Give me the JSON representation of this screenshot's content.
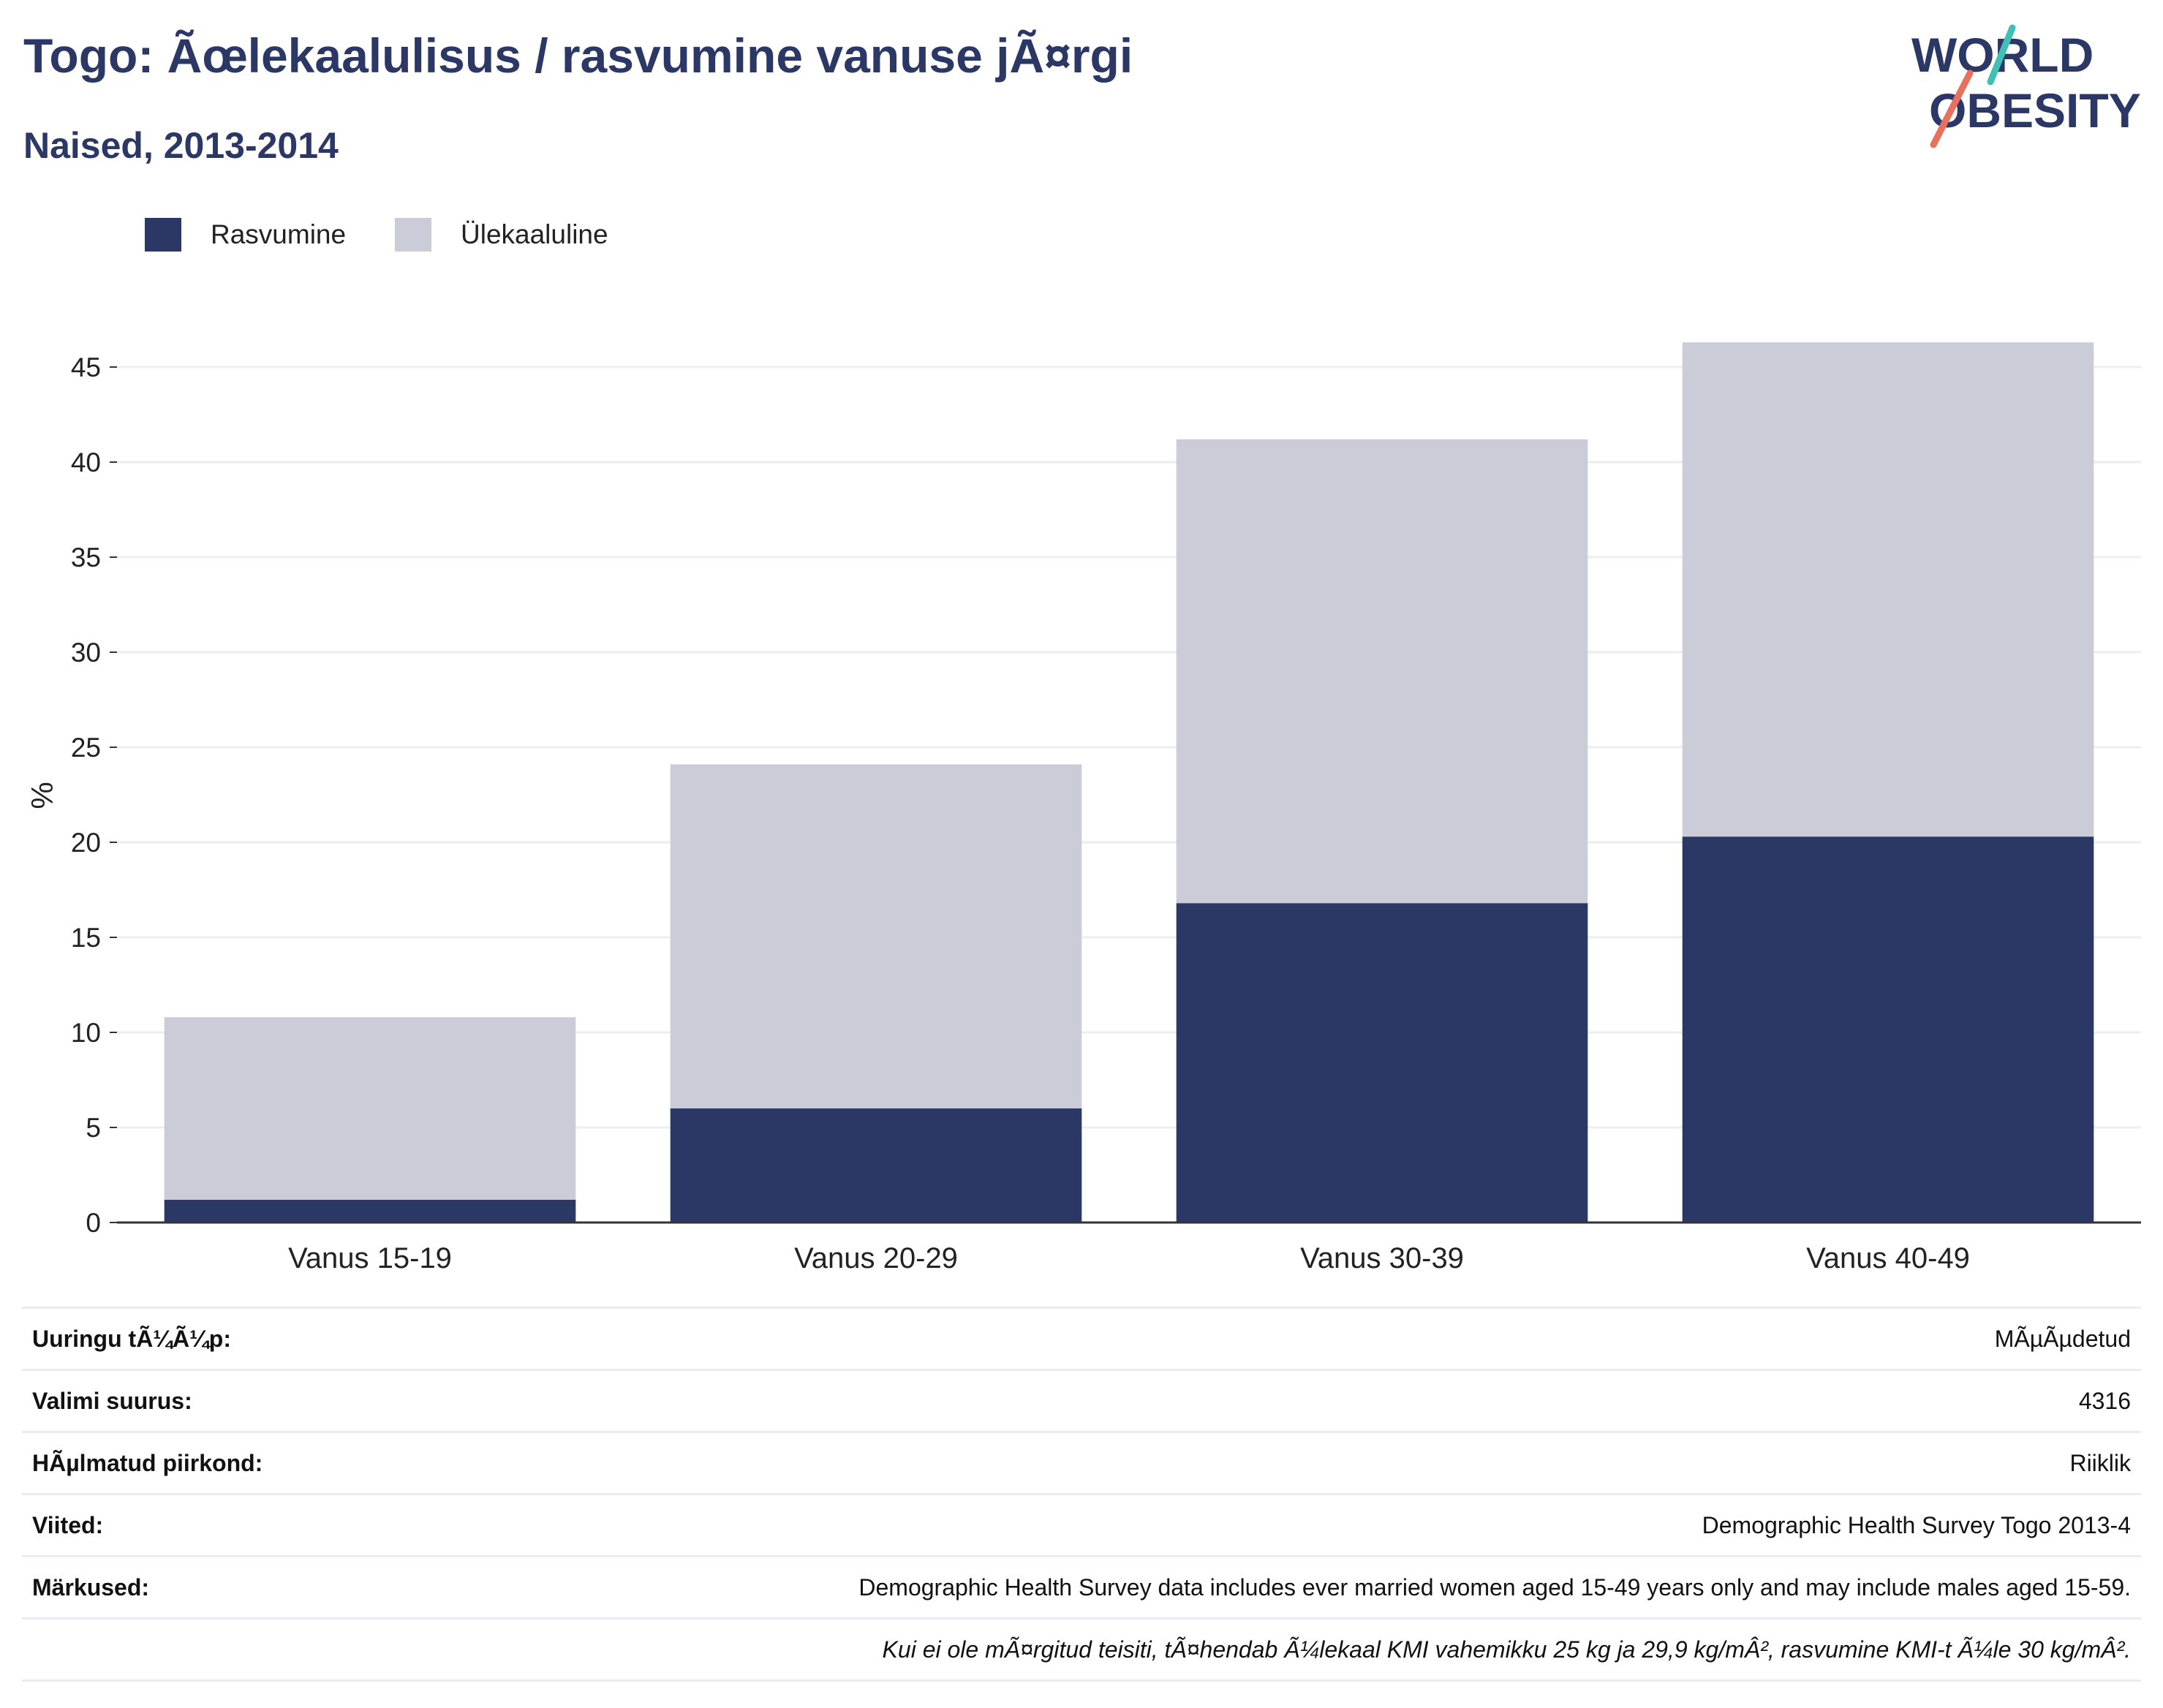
{
  "header": {
    "title": "Togo: Ãœlekaalulisus / rasvumine vanuse jÃ¤rgi",
    "subtitle": "Naised, 2013-2014",
    "logo_line1": "WORLD",
    "logo_line2": "OBESITY"
  },
  "colors": {
    "obesity": "#2b3765",
    "overweight": "#cacdd8",
    "grid": "#eceef3",
    "axis": "#333333",
    "logo_text": "#2b3765",
    "logo_accent_teal": "#3fbfb5",
    "logo_accent_coral": "#e8705e"
  },
  "chart_data": {
    "type": "bar",
    "stacked": true,
    "categories": [
      "Vanus 15-19",
      "Vanus 20-29",
      "Vanus 30-39",
      "Vanus 40-49"
    ],
    "series": [
      {
        "name": "Rasvumine",
        "values": [
          1.2,
          6.0,
          16.8,
          20.3
        ]
      },
      {
        "name": "Ülekaaluline",
        "values": [
          9.6,
          18.1,
          24.4,
          26.0
        ]
      }
    ],
    "ylabel": "%",
    "xlabel": "",
    "ylim": [
      0,
      48
    ],
    "yticks": [
      0,
      5,
      10,
      15,
      20,
      25,
      30,
      35,
      40,
      45
    ],
    "grid": true,
    "legend_position": "top-left"
  },
  "info": {
    "rows": [
      {
        "label": "Uuringu tÃ¼Ã¼p:",
        "value": "MÃµÃµdetud"
      },
      {
        "label": "Valimi suurus:",
        "value": "4316"
      },
      {
        "label": "HÃµlmatud piirkond:",
        "value": "Riiklik"
      },
      {
        "label": "Viited:",
        "value": "Demographic Health Survey Togo 2013-4"
      },
      {
        "label": "Märkused:",
        "value": "Demographic Health Survey data includes ever married women aged 15-49 years only and may include males aged 15-59."
      },
      {
        "label": "",
        "value": "Kui ei ole mÃ¤rgitud teisiti, tÃ¤hendab Ã¼lekaal KMI vahemikku 25 kg ja 29,9 kg/mÂ², rasvumine KMI-t Ã¼le 30 kg/mÂ²."
      }
    ]
  }
}
